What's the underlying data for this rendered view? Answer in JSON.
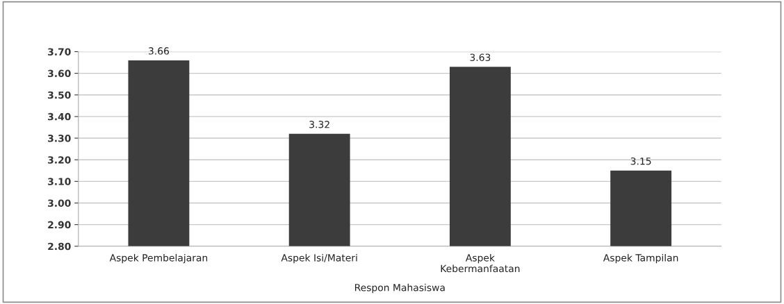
{
  "chart_data": {
    "type": "bar",
    "xlabel": "Respon Mahasiswa",
    "categories": [
      "Aspek Pembelajaran",
      "Aspek Isi/Materi",
      "Aspek\nKebermanfaatan",
      "Aspek Tampilan"
    ],
    "values": [
      3.66,
      3.32,
      3.63,
      3.15
    ],
    "color": "#3c3c3c",
    "data_labels": true,
    "ylim": [
      2.8,
      3.7
    ],
    "yticks": [
      {
        "value": 2.8,
        "label": "2.80"
      },
      {
        "value": 2.9,
        "label": "2.90"
      },
      {
        "value": 3.0,
        "label": "3.00"
      },
      {
        "value": 3.1,
        "label": "3.10"
      },
      {
        "value": 3.2,
        "label": "3.20"
      },
      {
        "value": 3.3,
        "label": "3.30"
      },
      {
        "value": 3.4,
        "label": "3.40"
      },
      {
        "value": 3.5,
        "label": "3.50"
      },
      {
        "value": 3.6,
        "label": "3.60"
      },
      {
        "value": 3.7,
        "label": "3.70"
      }
    ],
    "grid": "y",
    "legend": false
  }
}
